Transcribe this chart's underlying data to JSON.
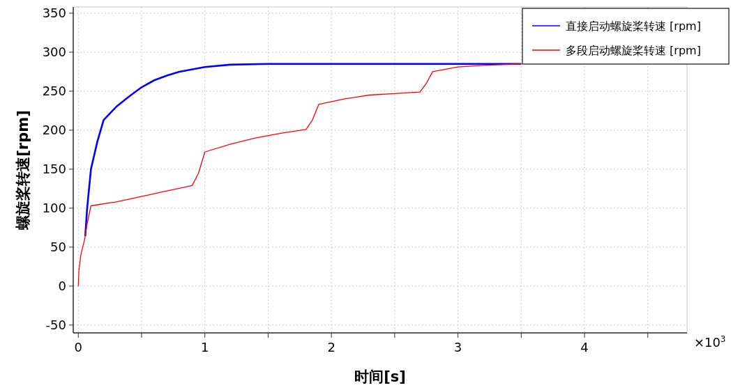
{
  "chart_data": {
    "type": "line",
    "xlabel": "时间[s]",
    "ylabel": "螺旋桨转速[rpm]",
    "annotations": [
      "×10$^{3}$"
    ],
    "xlim": [
      -0.04,
      4.81
    ],
    "xticks": [
      0,
      {
        "value": 0.5,
        "label": null
      },
      1,
      {
        "value": 1.5,
        "label": null
      },
      2,
      {
        "value": 2.5,
        "label": null
      },
      3,
      {
        "value": 3.5,
        "label": null
      },
      4,
      {
        "value": 4.5,
        "label": null
      }
    ],
    "ylim": [
      -60,
      358
    ],
    "yticks": [
      -50,
      0,
      50,
      100,
      150,
      200,
      250,
      300,
      350
    ],
    "grid": true,
    "legend": "top right",
    "line_style": "solid",
    "marker": "none",
    "series": [
      {
        "name": "直接启动螺旋桨转速 [rpm]",
        "color": "#0000ff",
        "x": [
          0.055,
          0.07,
          0.1,
          0.15,
          0.2,
          0.3,
          0.4,
          0.5,
          0.6,
          0.7,
          0.8,
          1.0,
          1.2,
          1.5,
          2.0,
          3.0,
          3.5
        ],
        "values": [
          64,
          100,
          150,
          185,
          213,
          230,
          243,
          255,
          264,
          270,
          275,
          281,
          284,
          285,
          285,
          285,
          285
        ]
      },
      {
        "name": "多段启动螺旋桨转速 [rpm]",
        "color": "#ff0000",
        "x": [
          0,
          0.005,
          0.02,
          0.05,
          0.07,
          0.1,
          0.3,
          0.5,
          0.7,
          0.9,
          0.95,
          1.0,
          1.2,
          1.4,
          1.6,
          1.8,
          1.85,
          1.9,
          2.1,
          2.3,
          2.5,
          2.7,
          2.75,
          2.8,
          3.0,
          3.2,
          3.5
        ],
        "values": [
          0,
          20,
          40,
          60,
          80,
          103,
          108,
          115,
          122,
          129,
          145,
          172,
          182,
          190,
          196,
          201,
          213,
          233,
          240,
          245,
          247,
          249,
          260,
          275,
          281,
          283,
          285
        ]
      }
    ]
  }
}
